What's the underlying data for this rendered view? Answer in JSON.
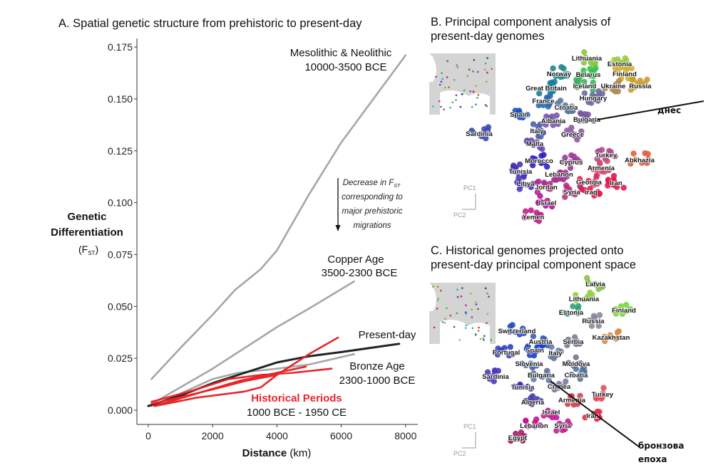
{
  "chart_data": [
    {
      "panel": "A",
      "type": "line",
      "title": "A. Spatial genetic structure from prehistoric to present-day",
      "xlabel_bold": "Distance",
      "xlabel_unit": "(km)",
      "ylabel_line1": "Genetic",
      "ylabel_line2": "Differentiation",
      "ylabel_line3": "(F",
      "ylabel_sub": "ST",
      "ylabel_close": ")",
      "xlim": [
        -300,
        8300
      ],
      "ylim": [
        -0.007,
        0.178
      ],
      "xticks": [
        "0",
        "2000",
        "4000",
        "6000",
        "8000"
      ],
      "xtick_values": [
        0,
        2000,
        4000,
        6000,
        8000
      ],
      "yticks": [
        "0.000",
        "0.025",
        "0.050",
        "0.075",
        "0.100",
        "0.125",
        "0.150",
        "0.175"
      ],
      "ytick_values": [
        0,
        0.025,
        0.05,
        0.075,
        0.1,
        0.125,
        0.15,
        0.175
      ],
      "grid": false,
      "colors": {
        "prehistoric": "#a6a6a6",
        "present": "#222222",
        "historical": "#e8252a"
      },
      "series": [
        {
          "group": "prehistoric",
          "x": [
            100,
            1000,
            2000,
            2700,
            3500,
            4000,
            5000,
            6000,
            7000,
            8000
          ],
          "y": [
            0.015,
            0.03,
            0.046,
            0.058,
            0.068,
            0.077,
            0.104,
            0.129,
            0.15,
            0.171
          ]
        },
        {
          "group": "prehistoric",
          "x": [
            100,
            1000,
            2000,
            3000,
            4000,
            5000,
            6400
          ],
          "y": [
            0.003,
            0.011,
            0.02,
            0.03,
            0.04,
            0.049,
            0.062
          ]
        },
        {
          "group": "prehistoric",
          "x": [
            100,
            1000,
            2000,
            2800,
            4000,
            5000,
            6400
          ],
          "y": [
            0.002,
            0.008,
            0.015,
            0.018,
            0.02,
            0.022,
            0.027
          ]
        },
        {
          "group": "present",
          "x": [
            0,
            1000,
            2000,
            3000,
            4000,
            5000,
            6000,
            7800
          ],
          "y": [
            0.002,
            0.007,
            0.013,
            0.018,
            0.023,
            0.026,
            0.028,
            0.032
          ]
        },
        {
          "group": "historical",
          "x": [
            200,
            1500,
            3000,
            3500,
            4000,
            5000,
            5900
          ],
          "y": [
            0.002,
            0.006,
            0.009,
            0.011,
            0.017,
            0.027,
            0.035
          ]
        },
        {
          "group": "historical",
          "x": [
            100,
            1500,
            2500,
            3500,
            4500,
            5700
          ],
          "y": [
            0.004,
            0.01,
            0.015,
            0.017,
            0.018,
            0.02
          ]
        },
        {
          "group": "historical",
          "x": [
            200,
            1500,
            2800,
            4000,
            4900
          ],
          "y": [
            0.002,
            0.008,
            0.014,
            0.018,
            0.021
          ]
        },
        {
          "group": "historical",
          "x": [
            100,
            1200,
            2000,
            3000,
            4000
          ],
          "y": [
            0.003,
            0.007,
            0.01,
            0.014,
            0.017
          ]
        }
      ],
      "annotations": {
        "meso_name": "Mesolithic & Neolithic",
        "meso_dates": "10000-3500 BCE",
        "copper_name": "Copper Age",
        "copper_dates": "3500-2300 BCE",
        "present_name": "Present-day",
        "bronze_name": "Bronze Age",
        "bronze_dates": "2300-1000 BCE",
        "historical_name": "Historical Periods",
        "historical_dates": "1000 BCE - 1950 CE",
        "arrow_line1": "Decrease in F",
        "arrow_sub": "ST",
        "arrow_line2": "corresponding to",
        "arrow_line3": "major prehistoric",
        "arrow_line4": "migrations"
      }
    },
    {
      "panel": "B",
      "type": "scatter",
      "title_line1": "B. Principal component analysis of",
      "title_line2": "present-day genomes",
      "axis_pc1": "PC1",
      "axis_pc2": "PC2",
      "callout": "днес",
      "labels": [
        "Lithuania",
        "Estonia",
        "Finland",
        "Norway",
        "Belarus",
        "Great Britain",
        "Iceland",
        "Ukraine",
        "Russia",
        "Hungary",
        "France",
        "Croatia",
        "Spain",
        "Bulgaria",
        "Albania",
        "Sardinia",
        "Italy",
        "Greece",
        "Malta",
        "Turkey",
        "Abkhazia",
        "Morocco",
        "Cyprus",
        "Armenia",
        "Tunisia",
        "Lebanon",
        "Georgia",
        "Iran",
        "Libya",
        "Jordan",
        "Syria",
        "Iraq",
        "Israel",
        "Yemen"
      ],
      "colors": [
        "#8cc63f",
        "#9ccc3a",
        "#d4b02a",
        "#1e8a8a",
        "#34c24a",
        "#16809a",
        "#40b060",
        "#b08a50",
        "#c8a030",
        "#6a6aa0",
        "#2a6ab0",
        "#5a78a0",
        "#1e50c0",
        "#7a58a0",
        "#7a58a8",
        "#3a48b0",
        "#5060a8",
        "#8a5aa0",
        "#6a4ab0",
        "#b04a90",
        "#e06040",
        "#3020c8",
        "#9a3a9a",
        "#d04a6a",
        "#4a30b8",
        "#a03090",
        "#e02a60",
        "#e01a4a",
        "#4a38b8",
        "#b02a90",
        "#b83080",
        "#e02050",
        "#b0189a",
        "#c0208a"
      ]
    },
    {
      "panel": "C",
      "type": "scatter",
      "title_line1": "C. Historical genomes projected onto",
      "title_line2": "present-day principal component space",
      "axis_pc1": "PC1",
      "axis_pc2": "PC2",
      "callout_line1": "бронзова",
      "callout_line2": "епоха",
      "labels": [
        "Latvia",
        "Lithuania",
        "Finland",
        "Estonia",
        "Russia",
        "Switzerland",
        "Kazakhstan",
        "Austria",
        "Serbia",
        "Portugal",
        "Spain",
        "Italy",
        "Moldova",
        "Slovenia",
        "Sardinia",
        "Bulgaria",
        "Croatia",
        "Tunisia",
        "Crimea",
        "Turkey",
        "Algeria",
        "Armenia",
        "Israel",
        "Iran",
        "Lebanon",
        "Syria",
        "Egypt"
      ],
      "colors": [
        "#8cc050",
        "#90d040",
        "#7ad83a",
        "#30a080",
        "#8a8a9a",
        "#2a4ac0",
        "#d88a40",
        "#3a60b0",
        "#7a7a9a",
        "#3040c0",
        "#1a40d0",
        "#6a7aa0",
        "#7a7090",
        "#5a70a8",
        "#4a38b8",
        "#6a7aa0",
        "#4a78a0",
        "#4a30c0",
        "#7a7aa0",
        "#e0505a",
        "#4a40b0",
        "#d04050",
        "#c0189a",
        "#e0304a",
        "#c01890",
        "#c02090",
        "#a0206a"
      ]
    }
  ]
}
